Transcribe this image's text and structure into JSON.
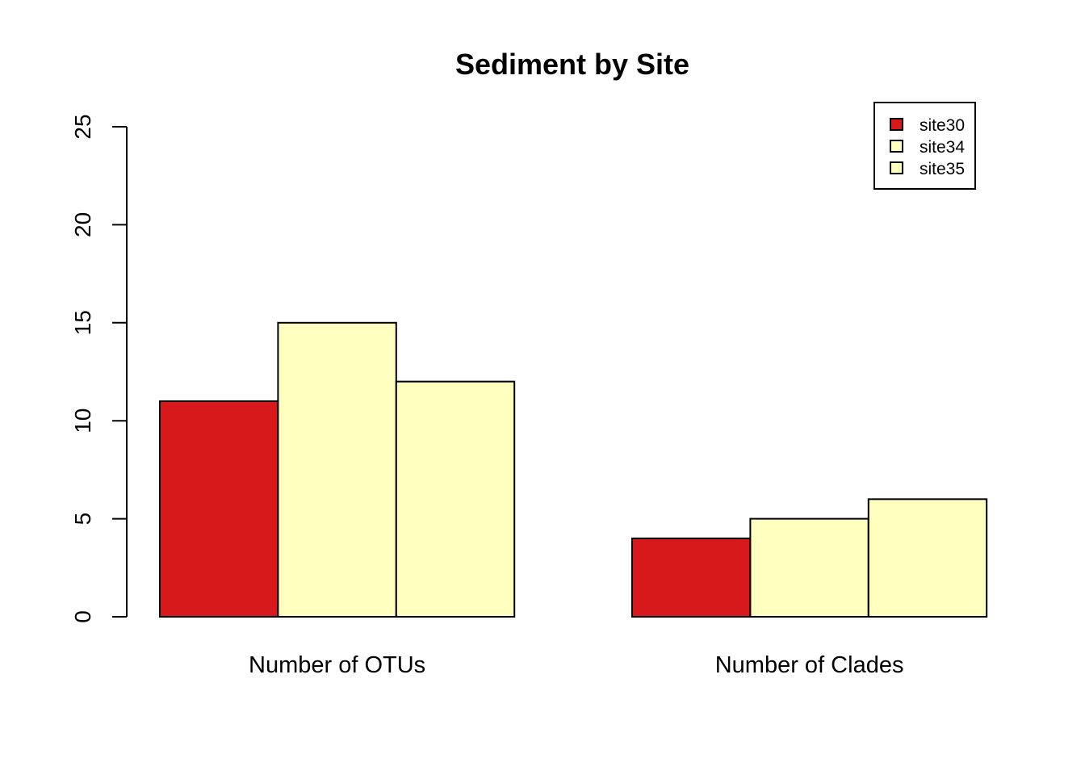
{
  "chart_data": {
    "type": "bar",
    "title": "Sediment by Site",
    "xlabel": "",
    "ylabel": "",
    "categories": [
      "Number of OTUs",
      "Number of Clades"
    ],
    "series": [
      {
        "name": "site30",
        "values": [
          11,
          4
        ],
        "color": "#D7191C"
      },
      {
        "name": "site34",
        "values": [
          15,
          5
        ],
        "color": "#FFFFBF"
      },
      {
        "name": "site35",
        "values": [
          12,
          6
        ],
        "color": "#FFFFBF"
      }
    ],
    "ylim": [
      0,
      25
    ],
    "yticks": [
      "0",
      "5",
      "10",
      "15",
      "20",
      "25"
    ],
    "grid": false,
    "legend_position": "top-right",
    "bar_layout": "grouped (beside)"
  }
}
